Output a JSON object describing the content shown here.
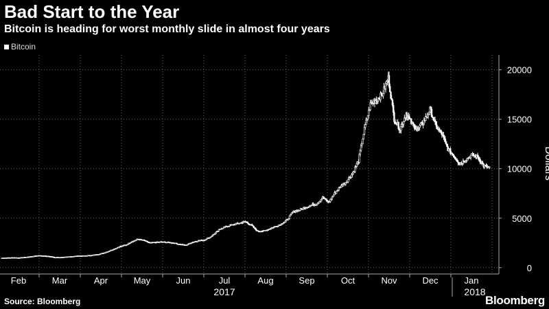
{
  "header": {
    "title": "Bad Start to the Year",
    "subtitle": "Bitcoin is heading for worst monthly slide in almost four years"
  },
  "legend": {
    "label": "Bitcoin",
    "color": "#ffffff"
  },
  "footer": {
    "source": "Source: Bloomberg",
    "brand": "Bloomberg"
  },
  "chart_data": {
    "type": "candlestick",
    "title": "Bad Start to the Year",
    "subtitle": "Bitcoin is heading for worst monthly slide in almost four years",
    "ylabel": "Dollars",
    "xlabel": "",
    "ylim": [
      -500,
      21500
    ],
    "yticks": [
      0,
      5000,
      10000,
      15000,
      20000
    ],
    "grid": true,
    "legend_position": "top-left",
    "series_name": "Bitcoin",
    "colors": {
      "background": "#000000",
      "candles": "#ffffff",
      "grid": "#6a6a6a",
      "axis": "#aaaaaa"
    },
    "month_labels": [
      "Feb",
      "Mar",
      "Apr",
      "May",
      "Jun",
      "Jul",
      "Aug",
      "Sep",
      "Oct",
      "Nov",
      "Dec",
      "Jan"
    ],
    "year_labels": [
      {
        "label": "2017",
        "month_index": 5
      },
      {
        "label": "2018",
        "month_index": 11
      }
    ],
    "weekly_closes": [
      970,
      1000,
      1020,
      1000,
      1050,
      1120,
      1220,
      1200,
      1170,
      1040,
      1050,
      1080,
      1150,
      1190,
      1200,
      1250,
      1320,
      1450,
      1650,
      1900,
      2150,
      2300,
      2650,
      2880,
      2750,
      2500,
      2560,
      2600,
      2560,
      2500,
      2360,
      2270,
      2550,
      2720,
      2780,
      3050,
      3500,
      4000,
      4200,
      4350,
      4500,
      4650,
      4300,
      3700,
      3700,
      3900,
      4150,
      4400,
      4800,
      5650,
      5800,
      6050,
      6300,
      6450,
      7100,
      6600,
      7500,
      8200,
      8700,
      9500,
      10800,
      14000,
      16500,
      17000,
      17500,
      19200,
      15000,
      14000,
      15600,
      14500,
      14000,
      14800,
      16000,
      14300,
      13500,
      12000,
      11300,
      10500,
      10900,
      11400,
      11200,
      10300,
      10100
    ]
  }
}
